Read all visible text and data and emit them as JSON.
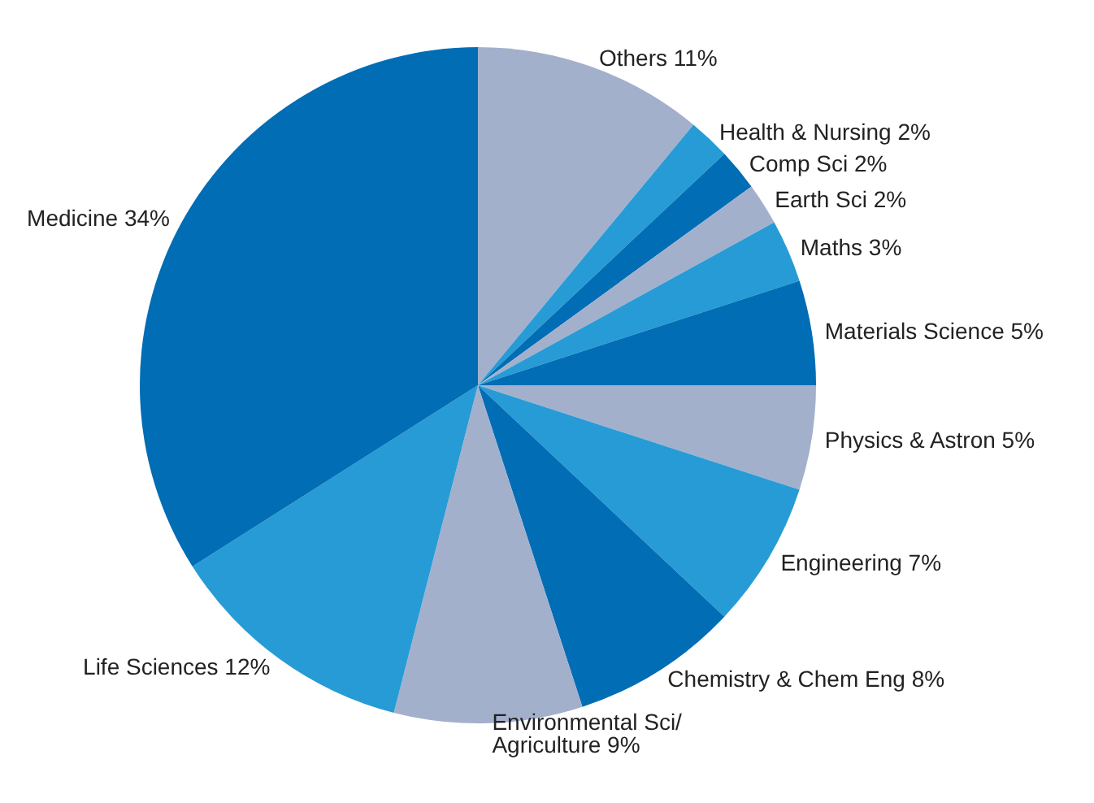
{
  "chart_data": {
    "type": "pie",
    "categories": [
      "Others",
      "Health & Nursing",
      "Comp Sci",
      "Earth Sci",
      "Maths",
      "Materials Science",
      "Physics & Astron",
      "Engineering",
      "Chemistry & Chem Eng",
      "Environmental Sci/\nAgriculture",
      "Life Sciences",
      "Medicine"
    ],
    "values": [
      11,
      2,
      2,
      2,
      3,
      5,
      5,
      7,
      8,
      9,
      12,
      34
    ],
    "value_labels": [
      "11%",
      "2%",
      "2%",
      "2%",
      "3%",
      "5%",
      "5%",
      "7%",
      "8%",
      "9%",
      "12%",
      "34%"
    ],
    "colors": [
      "#a3b0cc",
      "#279bd5",
      "#006db5",
      "#a3b0cc",
      "#279bd5",
      "#006db5",
      "#a3b0cc",
      "#279bd5",
      "#006db5",
      "#a3b0cc",
      "#279bd5",
      "#006db5"
    ],
    "legend": false
  }
}
